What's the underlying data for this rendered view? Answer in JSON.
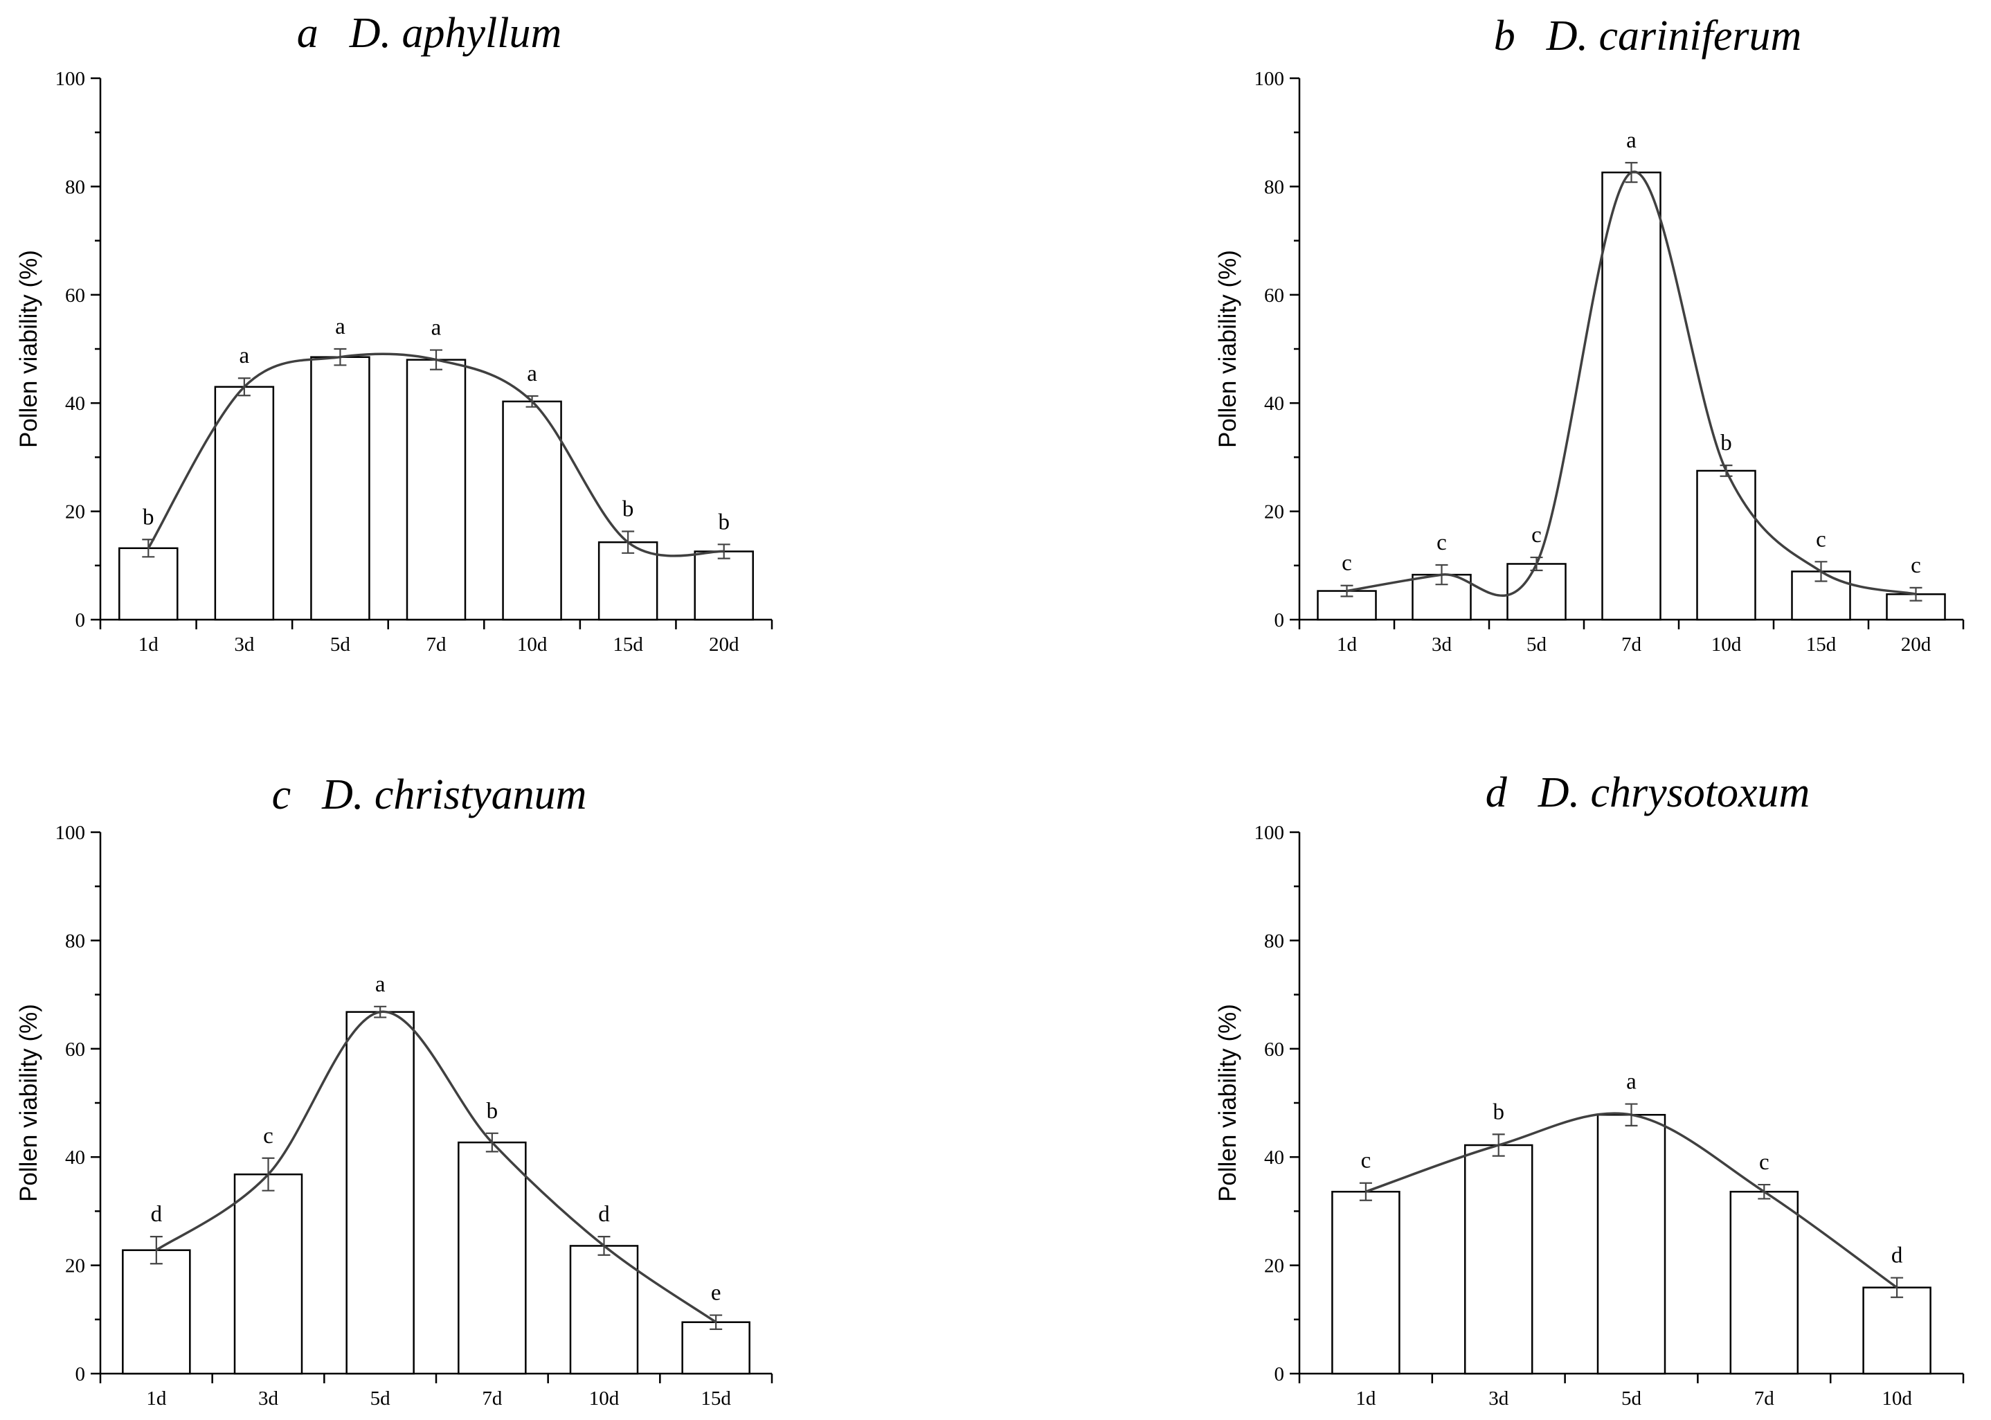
{
  "chart_data": [
    {
      "type": "bar",
      "panel_letter": "a",
      "species": "D. aphyllum",
      "categories": [
        "1d",
        "3d",
        "5d",
        "7d",
        "10d",
        "15d",
        "20d"
      ],
      "values": [
        13.2,
        43.0,
        48.5,
        48.0,
        40.3,
        14.3,
        12.6
      ],
      "errors": [
        1.6,
        1.6,
        1.5,
        1.8,
        1.0,
        2.0,
        1.3
      ],
      "letters": [
        "b",
        "a",
        "a",
        "a",
        "a",
        "b",
        "b"
      ],
      "ylabel": "Pollen viability (%)",
      "ylim": [
        0,
        100
      ],
      "yticks": [
        0,
        20,
        40,
        60,
        80,
        100
      ],
      "smooth_line": true
    },
    {
      "type": "bar",
      "panel_letter": "b",
      "species": "D. cariniferum",
      "categories": [
        "1d",
        "3d",
        "5d",
        "7d",
        "10d",
        "15d",
        "20d"
      ],
      "values": [
        5.3,
        8.3,
        10.3,
        82.6,
        27.5,
        8.9,
        4.7
      ],
      "errors": [
        1.0,
        1.8,
        1.2,
        1.8,
        1.0,
        1.8,
        1.2
      ],
      "letters": [
        "c",
        "c",
        "c",
        "a",
        "b",
        "c",
        "c"
      ],
      "ylabel": "Pollen viability (%)",
      "ylim": [
        0,
        100
      ],
      "yticks": [
        0,
        20,
        40,
        60,
        80,
        100
      ],
      "smooth_line": true
    },
    {
      "type": "bar",
      "panel_letter": "c",
      "species": "D. christyanum",
      "categories": [
        "1d",
        "3d",
        "5d",
        "7d",
        "10d",
        "15d"
      ],
      "values": [
        22.8,
        36.8,
        66.8,
        42.7,
        23.6,
        9.5
      ],
      "errors": [
        2.5,
        3.0,
        1.0,
        1.7,
        1.7,
        1.3
      ],
      "letters": [
        "d",
        "c",
        "a",
        "b",
        "d",
        "e"
      ],
      "ylabel": "Pollen viability (%)",
      "ylim": [
        0,
        100
      ],
      "yticks": [
        0,
        20,
        40,
        60,
        80,
        100
      ],
      "smooth_line": true
    },
    {
      "type": "bar",
      "panel_letter": "d",
      "species": "D. chrysotoxum",
      "categories": [
        "1d",
        "3d",
        "5d",
        "7d",
        "10d"
      ],
      "values": [
        33.6,
        42.2,
        47.8,
        33.6,
        15.9
      ],
      "errors": [
        1.6,
        2.0,
        2.0,
        1.3,
        1.8
      ],
      "letters": [
        "c",
        "b",
        "a",
        "c",
        "d"
      ],
      "ylabel": "Pollen viability (%)",
      "ylim": [
        0,
        100
      ],
      "yticks": [
        0,
        20,
        40,
        60,
        80,
        100
      ],
      "smooth_line": true
    }
  ]
}
